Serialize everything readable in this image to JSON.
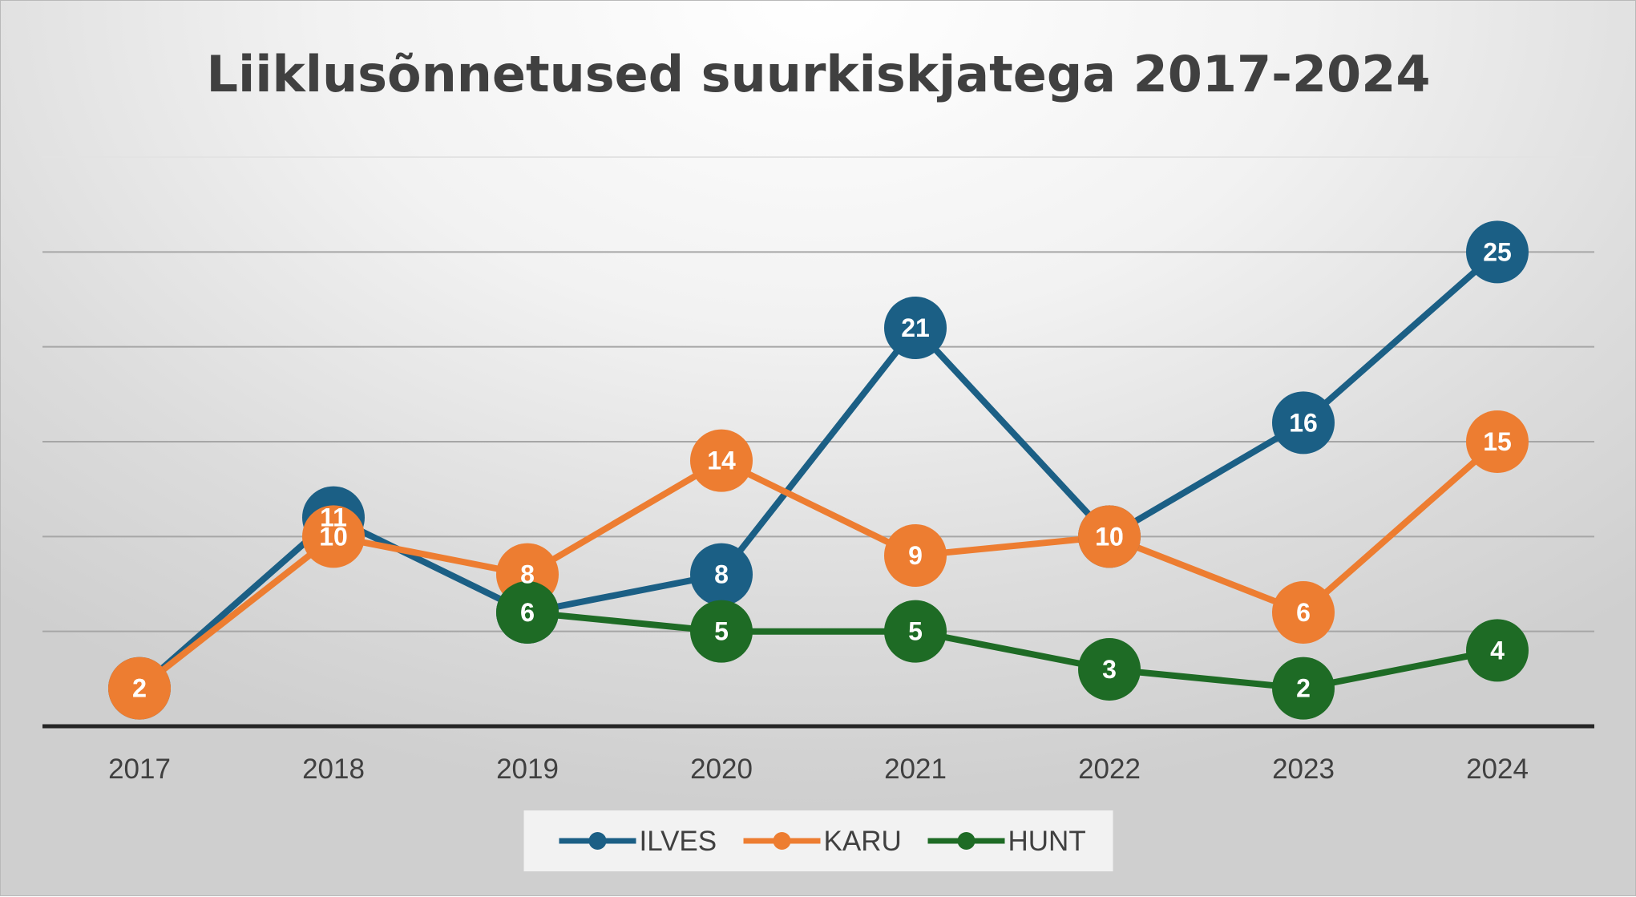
{
  "chart_data": {
    "type": "line",
    "title": "Liiklusõnnetused suurkiskjatega 2017-2024",
    "xlabel": "",
    "ylabel": "",
    "categories": [
      "2017",
      "2018",
      "2019",
      "2020",
      "2021",
      "2022",
      "2023",
      "2024"
    ],
    "series": [
      {
        "name": "ILVES",
        "color": "#1b5f85",
        "values": [
          2,
          11,
          6,
          8,
          21,
          10,
          16,
          25
        ]
      },
      {
        "name": "KARU",
        "color": "#ed7d31",
        "values": [
          2,
          10,
          8,
          14,
          9,
          10,
          6,
          15
        ]
      },
      {
        "name": "HUNT",
        "color": "#1e6b25",
        "values": [
          null,
          null,
          6,
          5,
          5,
          3,
          2,
          4
        ]
      }
    ],
    "ylim": [
      0,
      30
    ],
    "grid": true,
    "data_labels": true,
    "legend": "bottom"
  }
}
